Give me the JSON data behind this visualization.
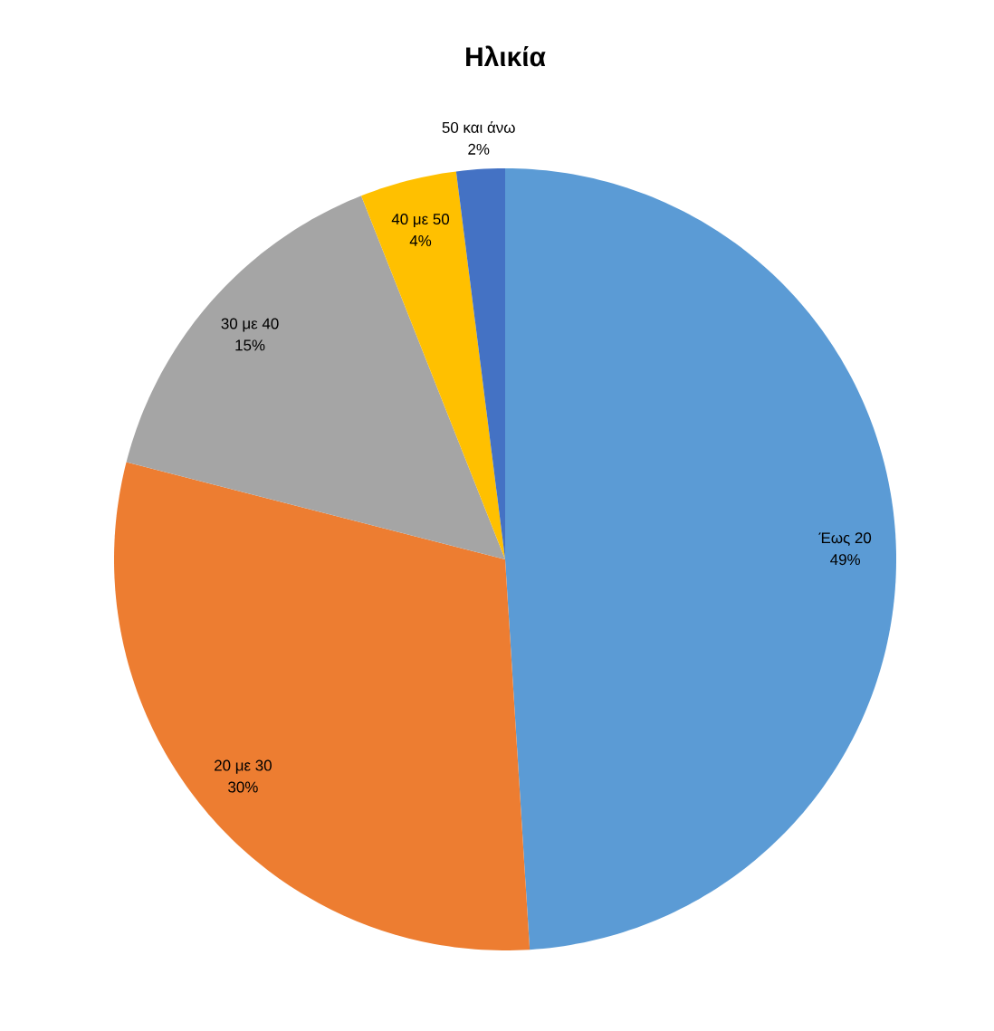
{
  "chart_data": {
    "type": "pie",
    "title": "Ηλικία",
    "categories": [
      "Έως 20",
      "20 με 30",
      "30 με 40",
      "40 με 50",
      "50 και άνω"
    ],
    "values": [
      49,
      30,
      15,
      4,
      2
    ],
    "value_labels": [
      "49%",
      "30%",
      "15%",
      "4%",
      "2%"
    ],
    "colors": [
      "#5b9bd5",
      "#ed7d31",
      "#a5a5a5",
      "#ffc000",
      "#4472c4"
    ],
    "legend": false
  }
}
